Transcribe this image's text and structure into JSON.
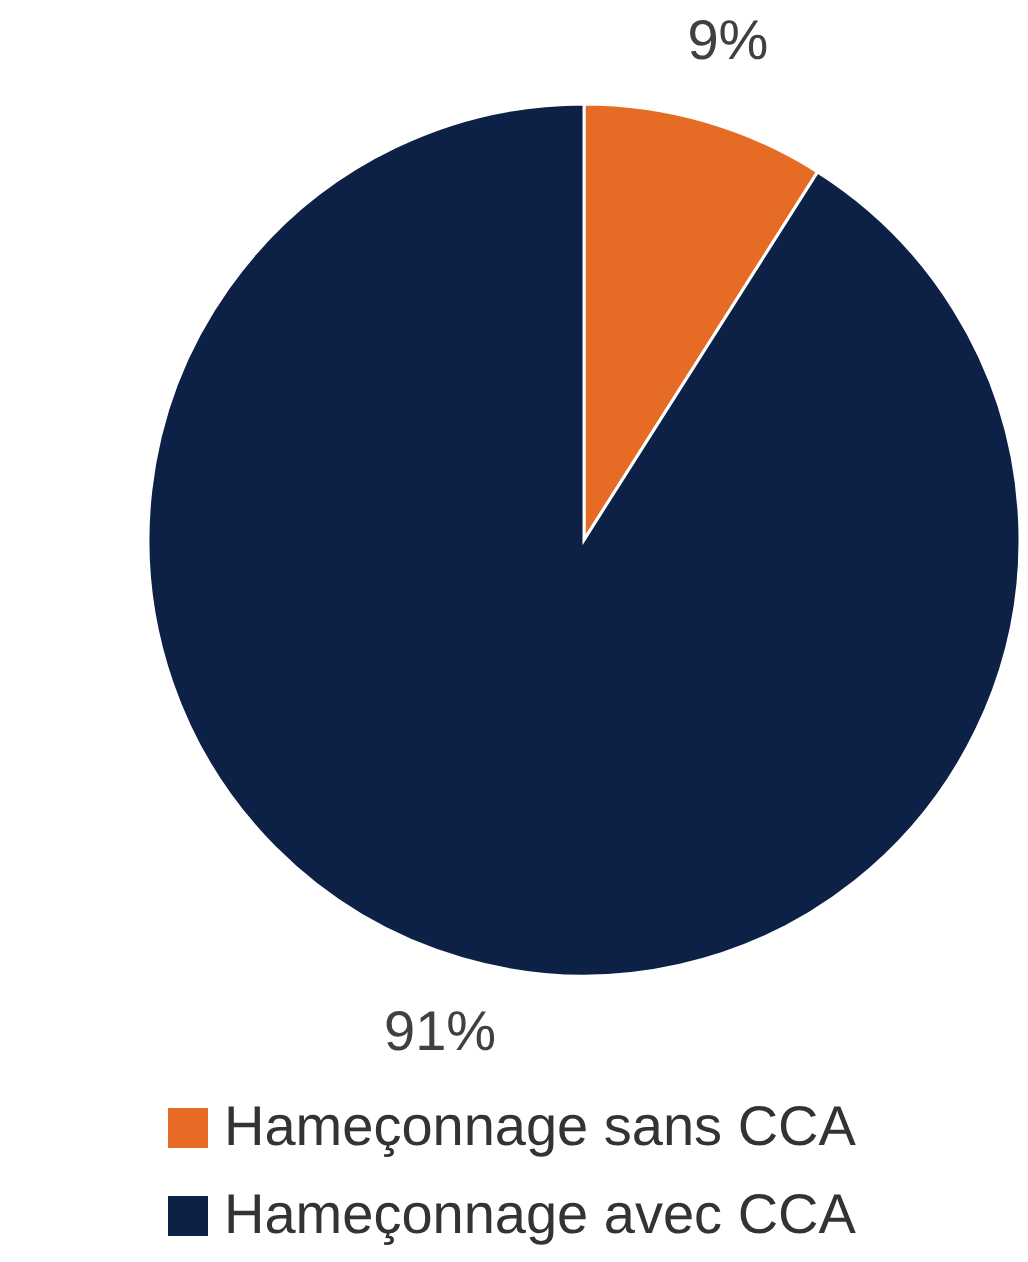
{
  "chart_data": {
    "type": "pie",
    "categories": [
      "Hameçonnage sans CCA",
      "Hameçonnage avec CCA"
    ],
    "values": [
      9,
      91
    ],
    "colors": [
      "#e66c25",
      "#0d2147"
    ],
    "value_labels": [
      "9%",
      "91%"
    ],
    "legend": "bottom"
  }
}
